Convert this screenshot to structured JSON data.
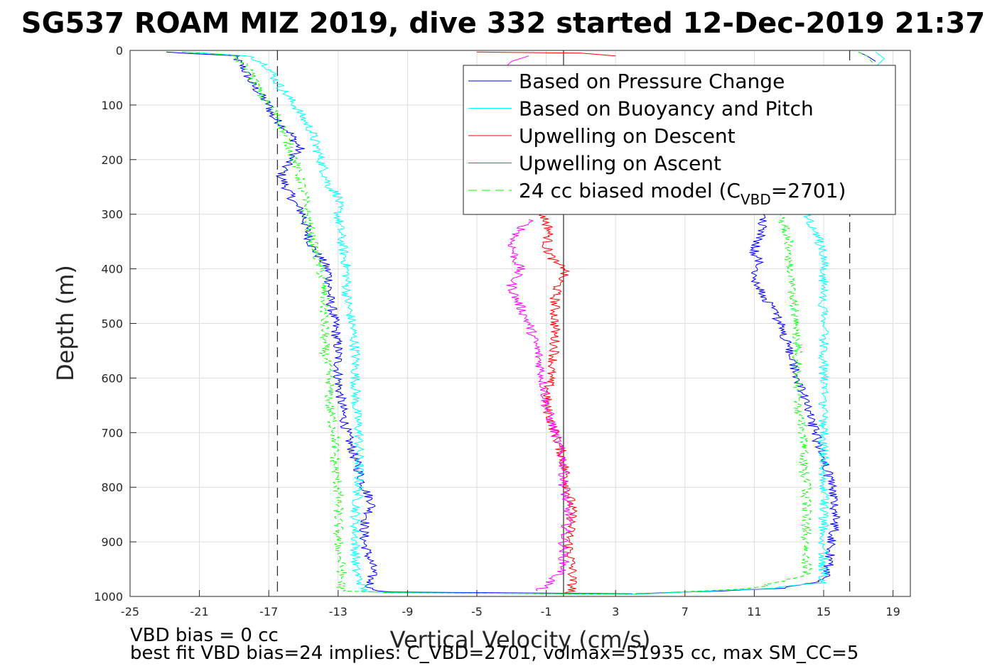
{
  "chart_data": {
    "type": "line",
    "title": "SG537 ROAM MIZ 2019, dive 332 started 12-Dec-2019 21:37",
    "xlabel": "Vertical Velocity (cm/s)",
    "ylabel": "Depth (m)",
    "xlim": [
      -25,
      20
    ],
    "ylim": [
      0,
      1000
    ],
    "y_reversed": true,
    "x_ticks": [
      -25,
      -21,
      -17,
      -13,
      -9,
      -5,
      -1,
      3,
      7,
      11,
      15,
      19
    ],
    "y_ticks": [
      0,
      100,
      200,
      300,
      400,
      500,
      600,
      700,
      800,
      900,
      1000
    ],
    "grid": true,
    "legend_position": "top-right",
    "ref_lines": {
      "dashed_x": [
        -16.5,
        16.5
      ],
      "solid_x": [
        0
      ]
    },
    "series": [
      {
        "name": "Based on Pressure Change",
        "color": "#0000ff",
        "style": "solid",
        "segments": [
          {
            "depth": [
              3,
              10,
              30,
              60,
              80,
              100,
              120,
              150,
              180,
              200,
              230,
              250,
              280,
              300,
              330,
              360,
              390,
              410,
              450,
              500,
              550,
              600,
              650,
              700,
              750,
              800,
              830,
              870,
              900,
              950,
              985,
              992
            ],
            "velocity": [
              -23,
              -19,
              -18.5,
              -18,
              -17.5,
              -17,
              -16.8,
              -15.8,
              -15.2,
              -15.8,
              -16.3,
              -16,
              -15.5,
              -15,
              -14.8,
              -14.5,
              -13.8,
              -13.5,
              -13.5,
              -13.2,
              -13,
              -13,
              -12.8,
              -12.5,
              -12,
              -11.5,
              -11,
              -11.5,
              -11.5,
              -11,
              -11.2,
              -10
            ]
          },
          {
            "depth": [
              992,
              995
            ],
            "velocity": [
              -10,
              4
            ]
          },
          {
            "depth": [
              995,
              990,
              985,
              975,
              960,
              900,
              850,
              800,
              750,
              700,
              650,
              600,
              550,
              500,
              460,
              430,
              410,
              390,
              370,
              350,
              330,
              310,
              300
            ],
            "velocity": [
              4,
              9,
              12.5,
              14.5,
              15.2,
              15.5,
              15.7,
              15.5,
              15,
              14.5,
              14,
              13.5,
              13,
              12.5,
              11.8,
              11.2,
              11,
              11.3,
              11,
              11.2,
              11.5,
              11.5,
              11.5
            ]
          },
          {
            "depth": [
              3,
              10,
              20
            ],
            "velocity": [
              17,
              17.5,
              18
            ]
          }
        ]
      },
      {
        "name": "Based on Buoyancy and Pitch",
        "color": "#00ffff",
        "style": "solid",
        "segments": [
          {
            "depth": [
              3,
              10,
              30,
              60,
              100,
              150,
              200,
              250,
              265,
              300,
              350,
              400,
              450,
              500,
              550,
              600,
              650,
              700,
              750,
              800,
              850,
              900,
              950,
              990,
              993
            ],
            "velocity": [
              -22,
              -18,
              -17,
              -16.5,
              -15.5,
              -14.5,
              -14,
              -13.5,
              -13,
              -13,
              -12.8,
              -12.5,
              -12.5,
              -12.2,
              -12,
              -12,
              -12,
              -11.8,
              -11.8,
              -11.8,
              -12,
              -12,
              -12,
              -11.5,
              -10
            ]
          },
          {
            "depth": [
              993,
              996
            ],
            "velocity": [
              -10,
              4
            ]
          },
          {
            "depth": [
              996,
              985,
              975,
              900,
              850,
              800,
              750,
              700,
              650,
              600,
              550,
              500,
              450,
              400,
              370,
              330,
              300
            ],
            "velocity": [
              4,
              12,
              15,
              15,
              15,
              15,
              15,
              15,
              15,
              15,
              15,
              15,
              15,
              15,
              15,
              14.5,
              14
            ]
          },
          {
            "depth": [
              3,
              15,
              30
            ],
            "velocity": [
              18,
              18.5,
              18
            ]
          }
        ]
      },
      {
        "name": "Upwelling on Descent",
        "color": "#ff0000",
        "style": "solid",
        "segments": [
          {
            "depth": [
              300,
              330,
              360,
              390,
              400,
              420,
              450,
              500,
              550,
              600,
              650,
              700,
              750,
              800,
              850,
              900,
              950,
              990,
              995
            ],
            "velocity": [
              -1.2,
              -0.8,
              -1,
              -0.5,
              0.2,
              -0.2,
              -0.5,
              -0.5,
              -0.5,
              -0.8,
              -1,
              -0.5,
              0,
              0.3,
              0.5,
              0.3,
              0.5,
              0.5,
              0
            ]
          },
          {
            "depth": [
              3,
              5,
              10
            ],
            "velocity": [
              -5,
              1,
              3
            ]
          }
        ]
      },
      {
        "name": "Upwelling on Ascent",
        "color": "#ff00ff",
        "style": "solid",
        "segments": [
          {
            "depth": [
              310,
              330,
              350,
              380,
              400,
              430,
              450,
              500,
              550,
              600,
              650,
              700,
              750,
              800,
              850,
              900,
              950,
              980,
              990
            ],
            "velocity": [
              -2,
              -2.5,
              -3,
              -2.8,
              -2.5,
              -3,
              -2.8,
              -2,
              -1.5,
              -1.2,
              -1,
              -0.5,
              0,
              0,
              0.3,
              0,
              0,
              -1,
              -1.5
            ]
          },
          {
            "depth": [
              10,
              20,
              35
            ],
            "velocity": [
              -2,
              -3,
              -3.5
            ]
          }
        ]
      },
      {
        "name": "24 cc biased model (C_VBD=2701)",
        "color": "#00ff00",
        "style": "dashed",
        "segments": [
          {
            "depth": [
              3,
              10,
              40,
              80,
              120,
              160,
              200,
              260,
              300,
              350,
              400,
              450,
              500,
              550,
              600,
              650,
              700,
              750,
              800,
              850,
              900,
              950,
              990,
              993
            ],
            "velocity": [
              -22,
              -19,
              -18,
              -17.5,
              -16.5,
              -16,
              -15.5,
              -15,
              -14.8,
              -14.5,
              -14,
              -13.8,
              -13.8,
              -13.8,
              -13.5,
              -13.5,
              -13.2,
              -13.2,
              -13,
              -13,
              -13,
              -12.8,
              -12.8,
              -10
            ]
          },
          {
            "depth": [
              993,
              996
            ],
            "velocity": [
              -10,
              4
            ]
          },
          {
            "depth": [
              996,
              985,
              960,
              900,
              850,
              800,
              750,
              700,
              650,
              600,
              550,
              500,
              450,
              400,
              350,
              300
            ],
            "velocity": [
              4,
              11,
              14,
              14,
              14,
              14,
              13.8,
              13.8,
              13.5,
              13.5,
              13.5,
              13.5,
              13.2,
              13,
              13,
              12.5
            ]
          },
          {
            "depth": [
              3,
              10,
              30
            ],
            "velocity": [
              17,
              17.5,
              18
            ]
          }
        ]
      }
    ]
  },
  "legend": {
    "items": [
      {
        "label": "Based on Pressure Change",
        "color": "#0000ff",
        "style": "solid"
      },
      {
        "label": "Based on Buoyancy and Pitch",
        "color": "#00ffff",
        "style": "solid"
      },
      {
        "label": "Upwelling on Descent",
        "color": "#ff0000",
        "style": "solid"
      },
      {
        "label": "Upwelling on Ascent",
        "color": "#ff00ff",
        "style": "solid"
      }
    ],
    "model_item": {
      "prefix": "24 cc biased model (C",
      "sub": "VBD",
      "suffix": "=2701)",
      "color": "#00ff00",
      "style": "dashed"
    }
  },
  "notes": {
    "line1": "VBD bias = 0 cc",
    "line2": "best fit VBD bias=24 implies: C_VBD=2701, volmax=51935 cc, max SM_CC=5"
  }
}
